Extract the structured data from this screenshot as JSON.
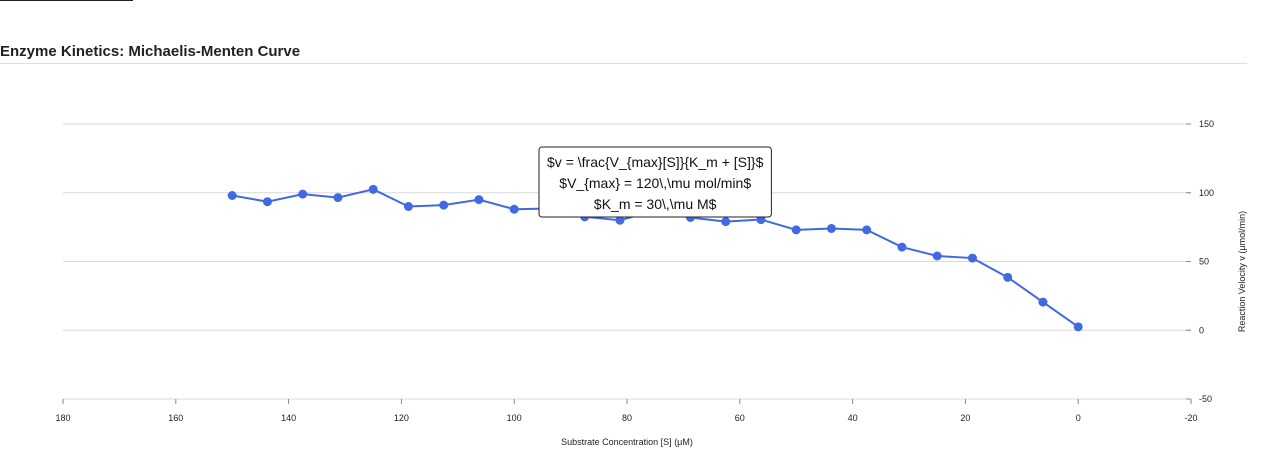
{
  "page": {
    "title": "Enzyme Kinetics: Michaelis-Menten Curve"
  },
  "chart_data": {
    "type": "line",
    "title": "Enzyme Kinetics: Michaelis-Menten Curve",
    "xlabel": "Substrate Concentration [S] (μM)",
    "ylabel": "Reaction Velocity v (μmol/min)",
    "xlim": [
      180,
      -20
    ],
    "ylim": [
      -50,
      150
    ],
    "x_ticks": [
      180,
      160,
      140,
      120,
      100,
      80,
      60,
      40,
      20,
      0,
      -20
    ],
    "y_ticks": [
      -50,
      0,
      50,
      100,
      150
    ],
    "y_axis_position": "right",
    "x_reversed": true,
    "grid": "horizontal",
    "legend": "none",
    "series": [
      {
        "color": "#4169e1",
        "x": [
          0,
          6.25,
          12.5,
          18.75,
          25,
          31.25,
          37.5,
          43.75,
          50,
          56.25,
          62.5,
          68.75,
          75,
          81.25,
          87.5,
          93.75,
          100,
          106.25,
          112.5,
          118.75,
          125,
          131.25,
          137.5,
          143.75,
          150
        ],
        "y": [
          2.5,
          20.5,
          38.5,
          52.5,
          54,
          60.5,
          73,
          74,
          73,
          80.5,
          79,
          82,
          87,
          80,
          82.5,
          88.5,
          88,
          95,
          91,
          90,
          102.5,
          96.5,
          99,
          93.5,
          98
        ]
      }
    ],
    "annotation": {
      "lines": [
        "$v = \\frac{V_{max}[S]}{K_m + [S]}$",
        "$V_{max} = 120\\,\\mu mol/min$",
        "$K_m = 30\\,\\mu M$"
      ],
      "anchor_x": 75,
      "anchor_y": 87
    }
  }
}
